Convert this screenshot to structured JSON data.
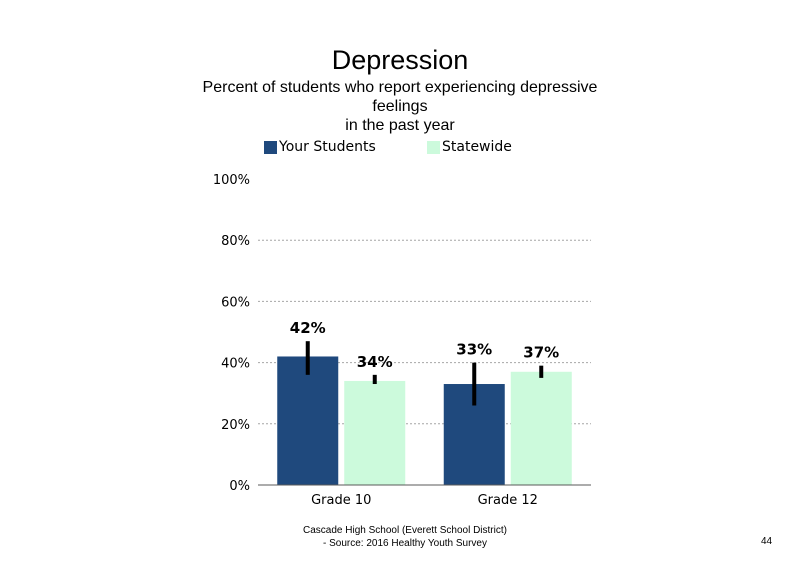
{
  "chart_data": {
    "type": "bar",
    "title": "Depression",
    "subtitle": [
      "Percent of students who report experiencing depressive",
      "feelings",
      "in the past year"
    ],
    "categories": [
      "Grade 10",
      "Grade 12"
    ],
    "series": [
      {
        "name": "Your Students",
        "color": "#1f497d",
        "values": [
          42,
          33
        ],
        "labels": [
          "42%",
          "33%"
        ],
        "error_low": [
          36,
          26
        ],
        "error_high": [
          47,
          40
        ]
      },
      {
        "name": "Statewide",
        "color": "#ccfadc",
        "values": [
          34,
          37
        ],
        "labels": [
          "34%",
          "37%"
        ],
        "error_low": [
          33,
          35
        ],
        "error_high": [
          36,
          39
        ]
      }
    ],
    "ylim": [
      0,
      100
    ],
    "yticks": [
      0,
      20,
      40,
      60,
      80,
      100
    ],
    "ytick_labels": [
      "0%",
      "20%",
      "40%",
      "60%",
      "80%",
      "100%"
    ],
    "grid": true,
    "legend_position": "top"
  },
  "footer": {
    "line1": "Cascade High School (Everett School District)",
    "line2": "- Source: 2016 Healthy Youth Survey"
  },
  "page_number": "44"
}
